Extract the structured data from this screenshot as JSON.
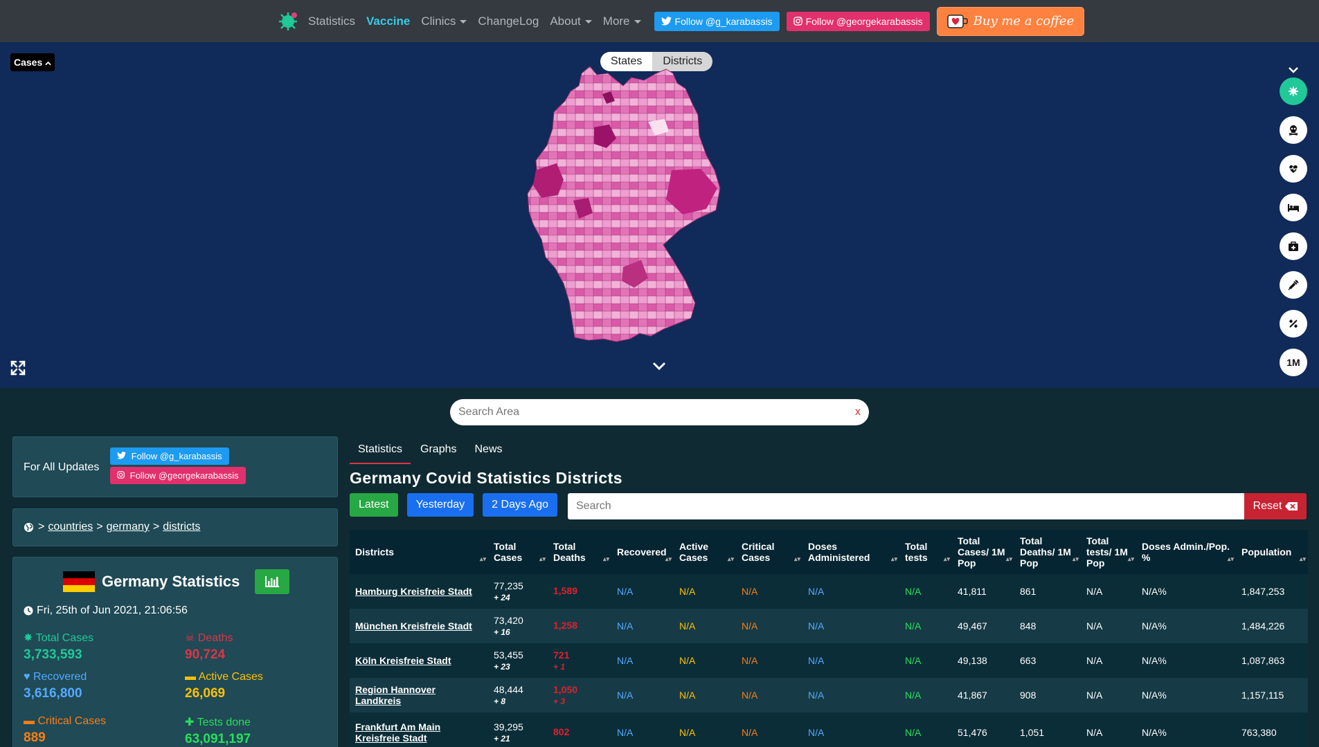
{
  "nav": {
    "links": [
      "Statistics",
      "Vaccine",
      "Clinics",
      "ChangeLog",
      "About",
      "More"
    ],
    "twitter": "Follow @g_karabassis",
    "instagram": "Follow @georgekarabassis",
    "coffee": "Buy me a coffee"
  },
  "map": {
    "metric_dropdown": "Cases",
    "toggle": [
      "States",
      "Districts"
    ],
    "side_buttons": [
      "virus-icon",
      "skull-icon",
      "heart-icon",
      "bed-icon",
      "medkit-icon",
      "syringe-icon",
      "percent-icon",
      "1M"
    ]
  },
  "area_search": {
    "placeholder": "Search Area",
    "clear": "x"
  },
  "updates": {
    "label": "For All Updates",
    "twitter": "Follow @g_karabassis",
    "instagram": "Follow @georgekarabassis"
  },
  "breadcrumb": {
    "sep": ">",
    "items": [
      "countries",
      "germany",
      "districts"
    ]
  },
  "stats": {
    "title": "Germany Statistics",
    "date": "Fri, 25th of Jun 2021, 21:06:56",
    "total_cases_label": "Total Cases",
    "total_cases": "3,733,593",
    "deaths_label": "Deaths",
    "deaths": "90,724",
    "recovered_label": "Recovered",
    "recovered": "3,616,800",
    "active_label": "Active Cases",
    "active": "26,069",
    "critical_label": "Critical Cases",
    "critical": "889",
    "tests_label": "Tests done",
    "tests": "63,091,197"
  },
  "tabs": [
    "Statistics",
    "Graphs",
    "News"
  ],
  "title": "Germany Covid Statistics Districts",
  "buttons": {
    "latest": "Latest",
    "yesterday": "Yesterday",
    "two_days": "2 Days Ago",
    "search_placeholder": "Search",
    "reset": "Reset"
  },
  "table": {
    "headers": [
      "Districts",
      "Total Cases",
      "Total Deaths",
      "Recovered",
      "Active Cases",
      "Critical Cases",
      "Doses Administered",
      "Total tests",
      "Total Cases/ 1M Pop",
      "Total Deaths/ 1M Pop",
      "Total tests/ 1M Pop",
      "Doses Admin./Pop. %",
      "Population"
    ],
    "rows": [
      {
        "name": "Hamburg Kreisfreie Stadt",
        "cases": "77,235",
        "new_cases": "+ 24",
        "deaths": "1,589",
        "new_deaths": "",
        "recovered": "N/A",
        "active": "N/A",
        "critical": "N/A",
        "doses": "N/A",
        "tests": "N/A",
        "cases_1m": "41,811",
        "deaths_1m": "861",
        "tests_1m": "N/A",
        "doses_pct": "N/A%",
        "population": "1,847,253"
      },
      {
        "name": "München Kreisfreie Stadt",
        "cases": "73,420",
        "new_cases": "+ 16",
        "deaths": "1,258",
        "new_deaths": "",
        "recovered": "N/A",
        "active": "N/A",
        "critical": "N/A",
        "doses": "N/A",
        "tests": "N/A",
        "cases_1m": "49,467",
        "deaths_1m": "848",
        "tests_1m": "N/A",
        "doses_pct": "N/A%",
        "population": "1,484,226"
      },
      {
        "name": "Köln Kreisfreie Stadt",
        "cases": "53,455",
        "new_cases": "+ 23",
        "deaths": "721",
        "new_deaths": "+ 1",
        "recovered": "N/A",
        "active": "N/A",
        "critical": "N/A",
        "doses": "N/A",
        "tests": "N/A",
        "cases_1m": "49,138",
        "deaths_1m": "663",
        "tests_1m": "N/A",
        "doses_pct": "N/A%",
        "population": "1,087,863"
      },
      {
        "name": "Region Hannover Landkreis",
        "cases": "48,444",
        "new_cases": "+ 8",
        "deaths": "1,050",
        "new_deaths": "+ 3",
        "recovered": "N/A",
        "active": "N/A",
        "critical": "N/A",
        "doses": "N/A",
        "tests": "N/A",
        "cases_1m": "41,867",
        "deaths_1m": "908",
        "tests_1m": "N/A",
        "doses_pct": "N/A%",
        "population": "1,157,115"
      },
      {
        "name": "Frankfurt Am Main Kreisfreie Stadt",
        "cases": "39,295",
        "new_cases": "+ 21",
        "deaths": "802",
        "new_deaths": "",
        "recovered": "N/A",
        "active": "N/A",
        "critical": "N/A",
        "doses": "N/A",
        "tests": "N/A",
        "cases_1m": "51,476",
        "deaths_1m": "1,051",
        "tests_1m": "N/A",
        "doses_pct": "N/A%",
        "population": "763,380"
      }
    ]
  }
}
